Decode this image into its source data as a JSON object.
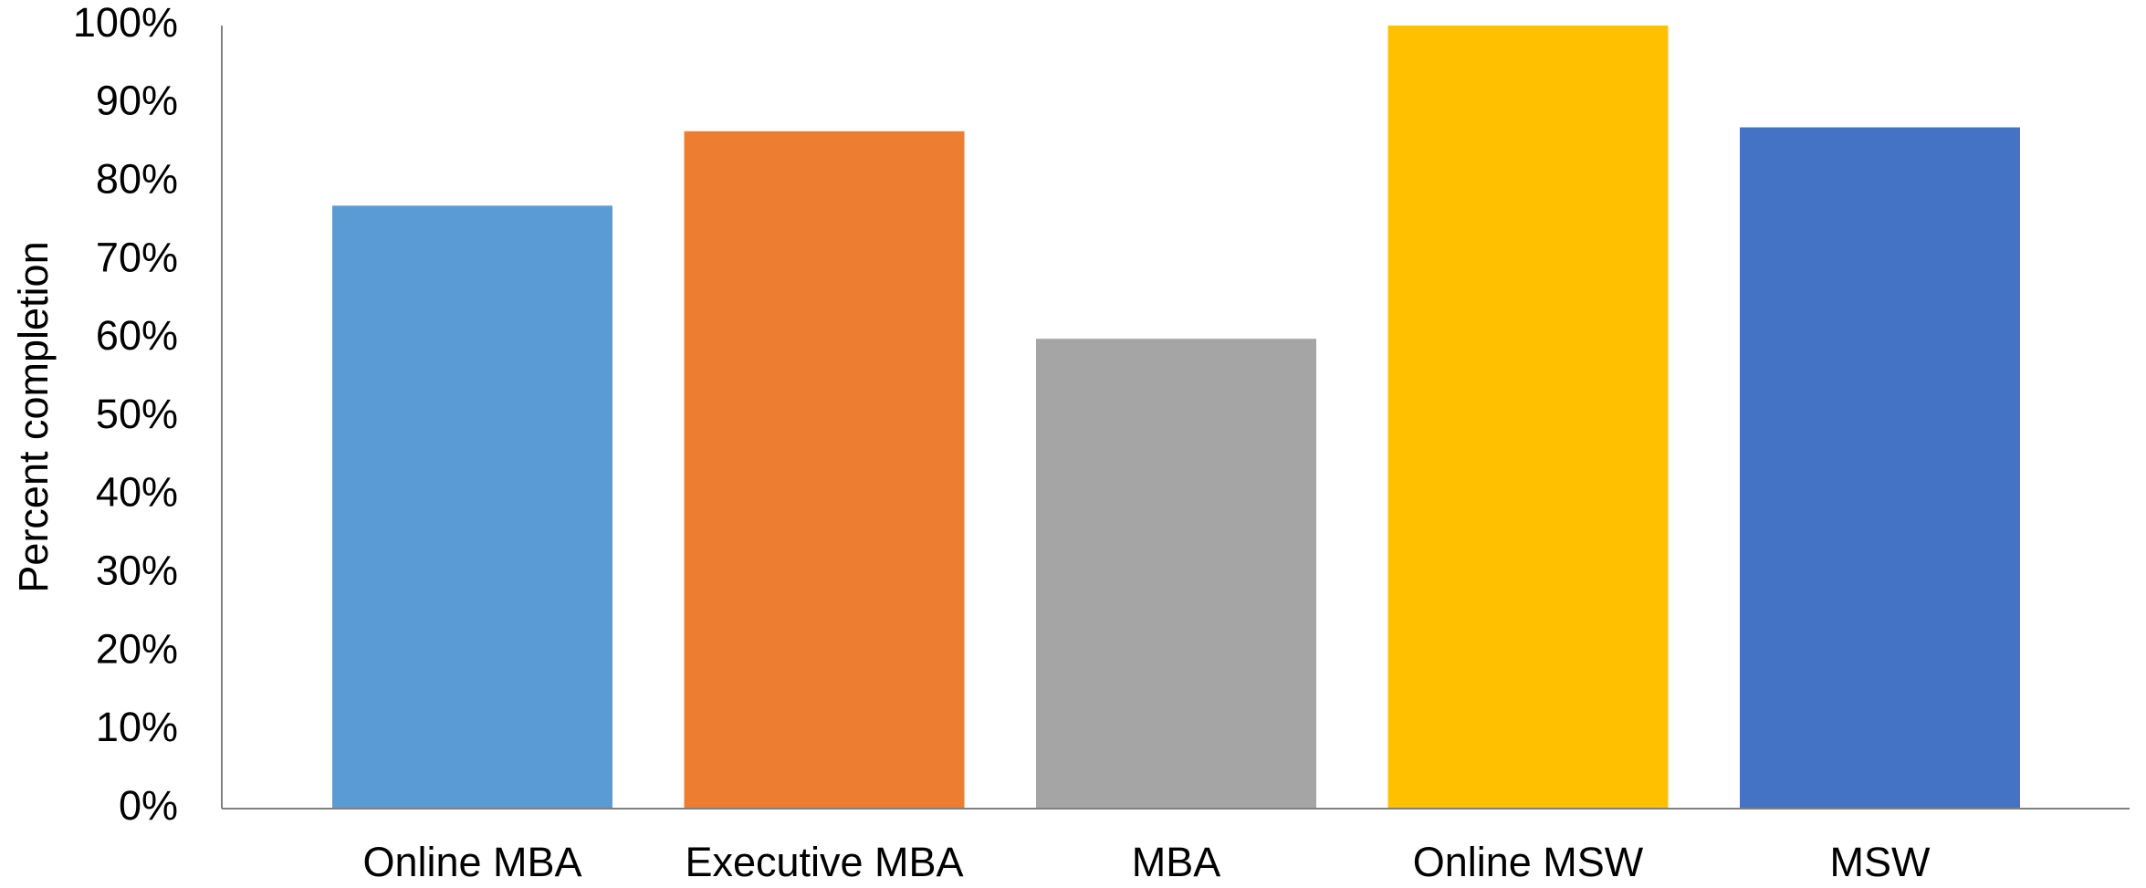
{
  "chart_data": {
    "type": "bar",
    "y_axis_label": "Percent completion",
    "categories": [
      "Online MBA",
      "Executive MBA",
      "MBA",
      "Online MSW",
      "MSW"
    ],
    "values": [
      77,
      86.5,
      60,
      100,
      87
    ],
    "colors": [
      "#5b9bd5",
      "#ed7d31",
      "#a5a5a5",
      "#ffc000",
      "#4472c4"
    ],
    "ylim": [
      0,
      100
    ],
    "yticks": [
      {
        "value": 0,
        "label": "0%"
      },
      {
        "value": 10,
        "label": "10%"
      },
      {
        "value": 20,
        "label": "20%"
      },
      {
        "value": 30,
        "label": "30%"
      },
      {
        "value": 40,
        "label": "40%"
      },
      {
        "value": 50,
        "label": "50%"
      },
      {
        "value": 60,
        "label": "60%"
      },
      {
        "value": 70,
        "label": "70%"
      },
      {
        "value": 80,
        "label": "80%"
      },
      {
        "value": 90,
        "label": "90%"
      },
      {
        "value": 100,
        "label": "100%"
      }
    ],
    "grid": false
  }
}
